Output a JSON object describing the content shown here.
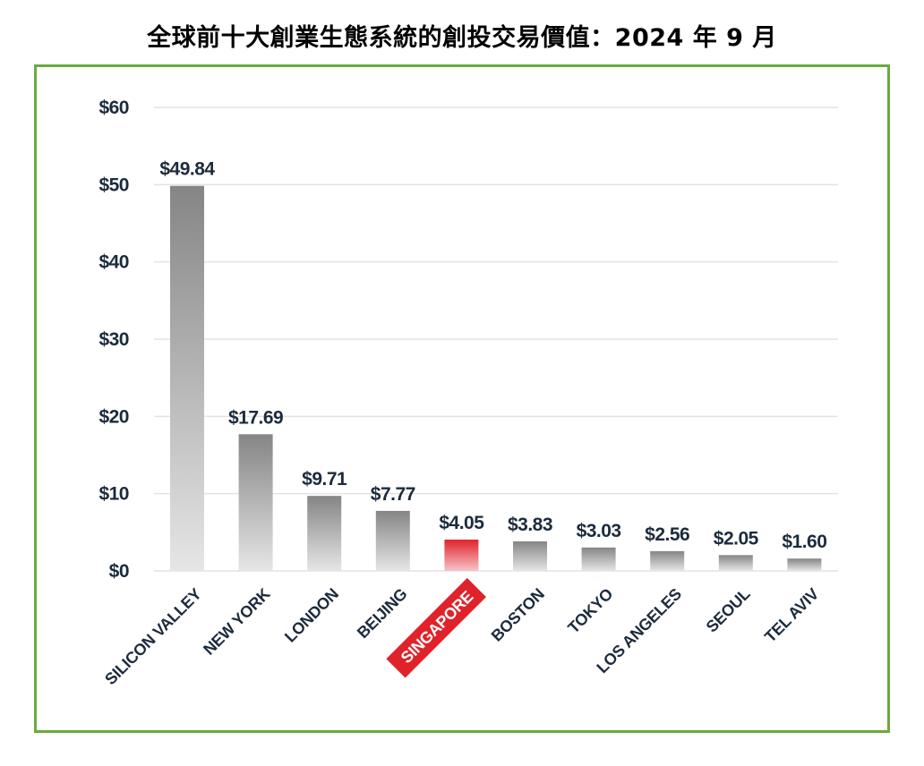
{
  "title": "全球前十大創業生態系統的創投交易價值：2024 年 9 月",
  "colors": {
    "frame_border": "#6aaa3f",
    "bar_gray_top": "#858585",
    "bar_gray_bottom": "#e6e6e6",
    "bar_highlight_top": "#e2222b",
    "bar_highlight_bottom": "#f5c5c8",
    "highlight_label_bg": "#e0222a",
    "text_dark": "#1c2b3d",
    "grid": "#e3e3e3"
  },
  "chart_data": {
    "type": "bar",
    "title": "全球前十大創業生態系統的創投交易價值：2024 年 9 月",
    "xlabel": "",
    "ylabel": "",
    "categories": [
      "SILICON VALLEY",
      "NEW YORK",
      "LONDON",
      "BEIJING",
      "SINGAPORE",
      "BOSTON",
      "TOKYO",
      "LOS ANGELES",
      "SEOUL",
      "TEL AVIV"
    ],
    "values": [
      49.84,
      17.69,
      9.71,
      7.77,
      4.05,
      3.83,
      3.03,
      2.56,
      2.05,
      1.6
    ],
    "value_labels": [
      "$49.84",
      "$17.69",
      "$9.71",
      "$7.77",
      "$4.05",
      "$3.83",
      "$3.03",
      "$2.56",
      "$2.05",
      "$1.60"
    ],
    "highlight_category": "SINGAPORE",
    "ylim": [
      0,
      60
    ],
    "yticks": [
      0,
      10,
      20,
      30,
      40,
      50,
      60
    ],
    "ytick_labels": [
      "$0",
      "$10",
      "$20",
      "$30",
      "$40",
      "$50",
      "$60"
    ],
    "grid": true,
    "legend": "none"
  }
}
